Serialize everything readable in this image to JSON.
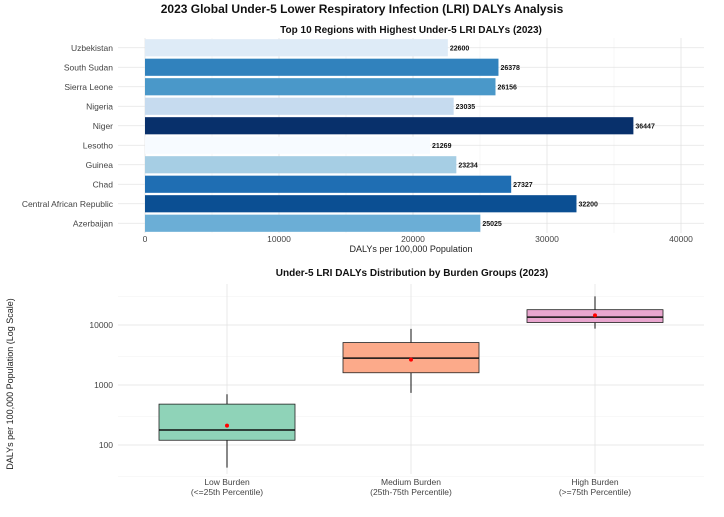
{
  "page_title": "2023 Global Under-5 Lower Respiratory Infection (LRI) DALYs Analysis",
  "chart_data": [
    {
      "type": "bar",
      "orientation": "horizontal",
      "title": "Top 10 Regions with Highest Under-5 LRI DALYs (2023)",
      "xlabel": "DALYs per 100,000 Population",
      "ylabel": "",
      "xlim": [
        0,
        40000
      ],
      "x_ticks": [
        "0",
        "10000",
        "20000",
        "30000",
        "40000"
      ],
      "categories": [
        "Uzbekistan",
        "South Sudan",
        "Sierra Leone",
        "Nigeria",
        "Niger",
        "Lesotho",
        "Guinea",
        "Chad",
        "Central African Republic",
        "Azerbaijan"
      ],
      "values": [
        22600,
        26378,
        26156,
        23035,
        36447,
        21269,
        23234,
        27327,
        32200,
        25025
      ],
      "value_labels": [
        "22600",
        "26378",
        "26156",
        "23035",
        "36447",
        "21269",
        "23234",
        "27327",
        "32200",
        "25025"
      ],
      "colors": [
        "#deebf7",
        "#3182bd",
        "#4a98c9",
        "#c6dbef",
        "#08306b",
        "#f7fbff",
        "#a6cee4",
        "#1f6eb3",
        "#0b4f93",
        "#6baed6"
      ],
      "grid": true,
      "legend": "none"
    },
    {
      "type": "box",
      "title": "Under-5 LRI DALYs Distribution by Burden Groups (2023)",
      "xlabel": "",
      "ylabel": "DALYs per 100,000 Population (Log Scale)",
      "y_scale": "log10",
      "ylim": [
        30,
        40000
      ],
      "y_ticks": [
        "100",
        "1000",
        "10000"
      ],
      "categories": [
        "Low Burden\n(<=25th Percentile)",
        "Medium Burden\n(25th-75th Percentile)",
        "High Burden\n(>=75th Percentile)"
      ],
      "category_lines": [
        [
          "Low Burden",
          "(<=25th Percentile)"
        ],
        [
          "Medium Burden",
          "(25th-75th Percentile)"
        ],
        [
          "High Burden",
          "(>=75th Percentile)"
        ]
      ],
      "boxes": [
        {
          "whisker_low": 42,
          "q1": 120,
          "median": 178,
          "q3": 480,
          "whisker_high": 700,
          "mean": 210,
          "color": "#8fd3b8"
        },
        {
          "whisker_low": 740,
          "q1": 1600,
          "median": 2800,
          "q3": 5100,
          "whisker_high": 8600,
          "mean": 2650,
          "color": "#fcaa8a"
        },
        {
          "whisker_low": 8700,
          "q1": 11000,
          "median": 13500,
          "q3": 18000,
          "whisker_high": 30000,
          "mean": 14500,
          "color": "#e9a6cf"
        }
      ],
      "mean_marker_color": "#ff0000",
      "grid": true,
      "legend": "none"
    }
  ]
}
